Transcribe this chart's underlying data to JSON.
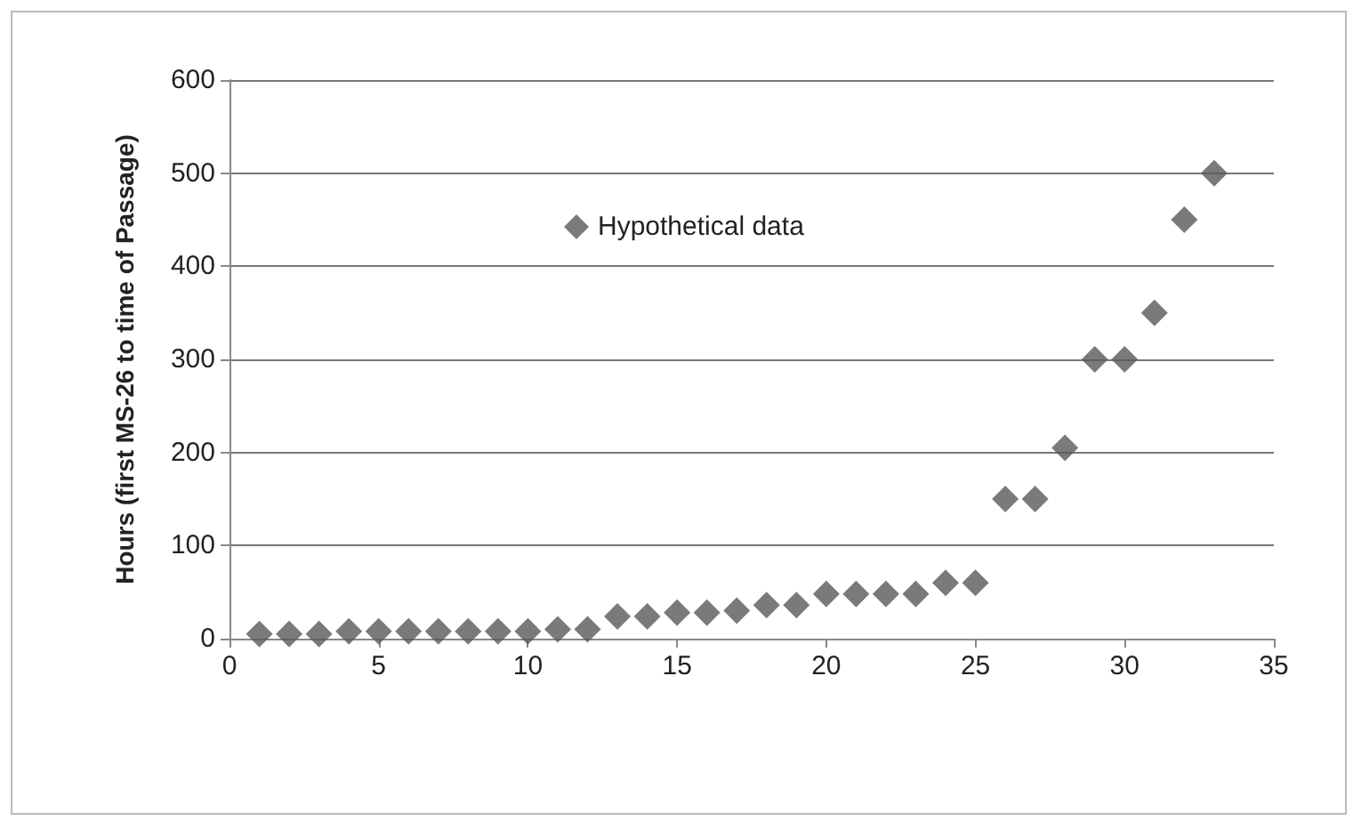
{
  "chart_data": {
    "type": "scatter",
    "ylabel": "Hours (first MS-26 to time of Passage)",
    "x": [
      1,
      2,
      3,
      4,
      5,
      6,
      7,
      8,
      9,
      10,
      11,
      12,
      13,
      14,
      15,
      16,
      17,
      18,
      19,
      20,
      21,
      22,
      23,
      24,
      25,
      26,
      27,
      28,
      29,
      30,
      31,
      32,
      33
    ],
    "series": [
      {
        "name": "Hypothetical data",
        "color": "#595959",
        "values": [
          5,
          5,
          5,
          8,
          8,
          8,
          8,
          8,
          8,
          8,
          10,
          10,
          24,
          24,
          28,
          28,
          30,
          36,
          36,
          48,
          48,
          48,
          48,
          60,
          60,
          150,
          150,
          205,
          300,
          300,
          350,
          450,
          500
        ]
      }
    ],
    "xlim": [
      0,
      35
    ],
    "xticks": [
      0,
      5,
      10,
      15,
      20,
      25,
      30,
      35
    ],
    "ylim": [
      0,
      600
    ],
    "yticks": [
      0,
      100,
      200,
      300,
      400,
      500,
      600
    ],
    "grid": "y",
    "legend": "top left",
    "marker": "diamond"
  }
}
